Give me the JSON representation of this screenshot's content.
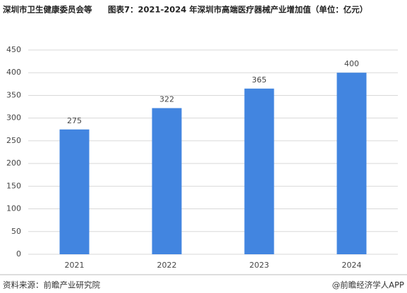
{
  "chart_data": {
    "type": "bar",
    "header_note": "深圳市卫生健康委员会等",
    "title": "图表7：2021-2024 年深圳市高端医疗器械产业增加值（单位：亿元）",
    "categories": [
      "2021",
      "2022",
      "2023",
      "2024"
    ],
    "values": [
      275,
      322,
      365,
      400
    ],
    "color": "#4285e0",
    "ylim": [
      0,
      450
    ],
    "yticks": [
      0,
      50,
      100,
      150,
      200,
      250,
      300,
      350,
      400,
      450
    ],
    "grid": true,
    "source": "资料来源：前瞻产业研究院",
    "credit": "@前瞻经济学人APP"
  }
}
